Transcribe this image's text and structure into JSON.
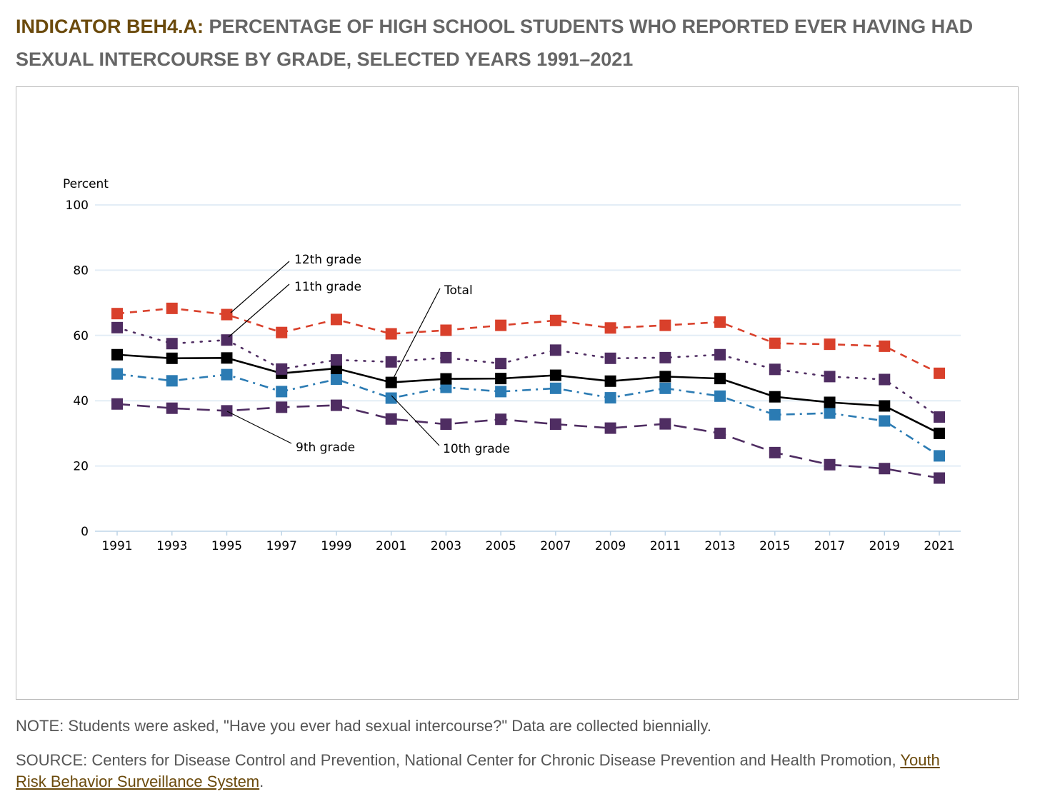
{
  "title": {
    "indicator": "INDICATOR BEH4.A:",
    "text": " PERCENTAGE OF HIGH SCHOOL STUDENTS WHO REPORTED EVER HAVING HAD SEXUAL INTERCOURSE BY GRADE, SELECTED YEARS 1991–2021"
  },
  "note": "NOTE: Students were asked, \"Have you ever had sexual intercourse?\" Data are collected biennially.",
  "source": {
    "prefix": "SOURCE: Centers for Disease Control and Prevention, National Center for Chronic Disease Prevention and Health Promotion, ",
    "link": "Youth Risk Behavior Surveillance System",
    "suffix": "."
  },
  "chart_data": {
    "type": "line",
    "ylabel": "Percent",
    "ylim": [
      0,
      100
    ],
    "yticks": [
      0,
      20,
      40,
      60,
      80,
      100
    ],
    "grid": true,
    "x": [
      "1991",
      "1993",
      "1995",
      "1997",
      "1999",
      "2001",
      "2003",
      "2005",
      "2007",
      "2009",
      "2011",
      "2013",
      "2015",
      "2017",
      "2019",
      "2021"
    ],
    "series": [
      {
        "name": "12th grade",
        "color": "#d9402b",
        "dash": "10,8",
        "values": [
          66.7,
          68.3,
          66.4,
          60.9,
          64.9,
          60.5,
          61.6,
          63.1,
          64.6,
          62.3,
          63.1,
          64.1,
          57.6,
          57.3,
          56.7,
          48.4
        ]
      },
      {
        "name": "11th grade",
        "color": "#4f2d62",
        "dash": "2,10",
        "values": [
          62.4,
          57.5,
          58.6,
          49.7,
          52.5,
          51.9,
          53.2,
          51.4,
          55.5,
          53.0,
          53.2,
          54.1,
          49.6,
          47.4,
          46.5,
          35.0
        ]
      },
      {
        "name": "Total",
        "color": "#000000",
        "dash": "",
        "values": [
          54.1,
          53.0,
          53.1,
          48.4,
          49.9,
          45.6,
          46.7,
          46.8,
          47.8,
          46.0,
          47.4,
          46.8,
          41.2,
          39.5,
          38.4,
          30.0
        ]
      },
      {
        "name": "10th grade",
        "color": "#2b7bb3",
        "dash": "12,7,3,7",
        "values": [
          48.2,
          46.1,
          48.0,
          42.8,
          46.6,
          40.8,
          44.1,
          42.8,
          43.8,
          40.9,
          43.8,
          41.4,
          35.7,
          36.2,
          33.8,
          23.1
        ]
      },
      {
        "name": "9th grade",
        "color": "#4f2d62",
        "dash": "18,10",
        "values": [
          39.0,
          37.7,
          36.9,
          38.0,
          38.6,
          34.4,
          32.8,
          34.3,
          32.8,
          31.6,
          32.9,
          30.0,
          24.1,
          20.4,
          19.2,
          16.3
        ]
      }
    ]
  }
}
